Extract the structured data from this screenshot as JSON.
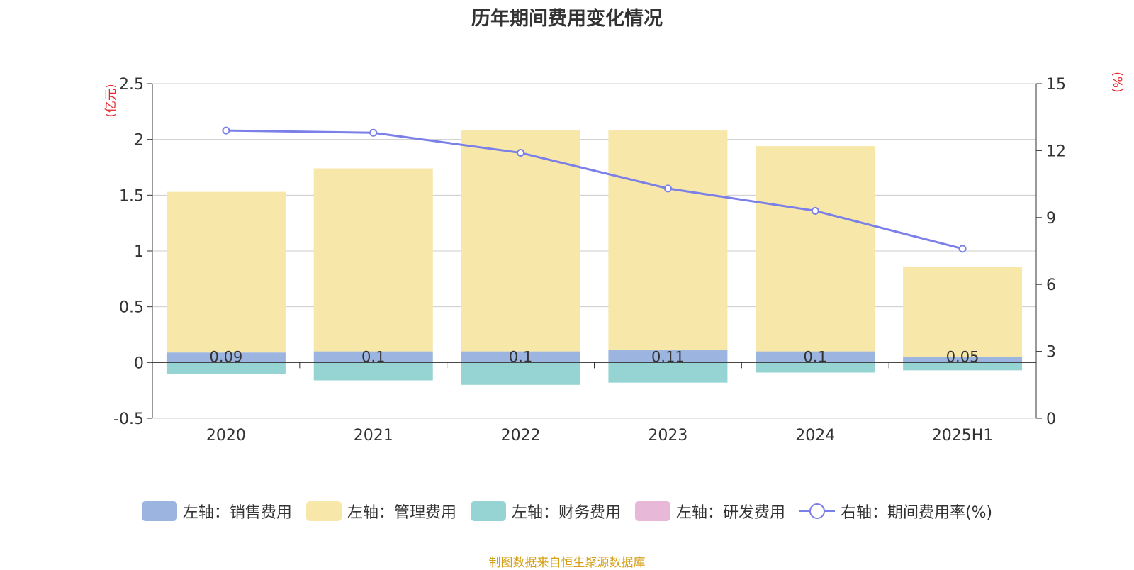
{
  "chart_data": {
    "type": "bar",
    "title": "历年期间费用变化情况",
    "categories": [
      "2020",
      "2021",
      "2022",
      "2023",
      "2024",
      "2025H1"
    ],
    "left_axis": {
      "unit_label": "(亿元)",
      "ticks": [
        "2.5",
        "2",
        "1.5",
        "1",
        "0.5",
        "0",
        "-0.5"
      ],
      "ylim": [
        -0.5,
        2.5
      ]
    },
    "right_axis": {
      "unit_label": "(%)",
      "ticks": [
        "15",
        "12",
        "9",
        "6",
        "3",
        "0"
      ],
      "ylim": [
        0,
        15
      ]
    },
    "series": [
      {
        "name": "左轴：销售费用",
        "axis": "left",
        "kind": "bar",
        "color": "#9bb5e0",
        "values": [
          0.09,
          0.1,
          0.1,
          0.11,
          0.1,
          0.05
        ],
        "labels": [
          "0.09",
          "0.1",
          "0.1",
          "0.11",
          "0.1",
          "0.05"
        ]
      },
      {
        "name": "左轴：管理费用",
        "axis": "left",
        "kind": "bar",
        "color": "#f7e7a8",
        "values": [
          1.44,
          1.64,
          1.98,
          1.97,
          1.84,
          0.81
        ]
      },
      {
        "name": "左轴：财务费用",
        "axis": "left",
        "kind": "bar",
        "color": "#96d4d4",
        "values": [
          -0.1,
          -0.16,
          -0.2,
          -0.18,
          -0.09,
          -0.07
        ]
      },
      {
        "name": "左轴：研发费用",
        "axis": "left",
        "kind": "bar",
        "color": "#e8b8d8",
        "values": [
          0,
          0,
          0,
          0,
          0,
          0
        ]
      },
      {
        "name": "右轴：期间费用率(%)",
        "axis": "right",
        "kind": "line",
        "color": "#7b7fe8",
        "values": [
          12.9,
          12.8,
          11.9,
          10.3,
          9.3,
          7.6
        ]
      }
    ],
    "unit_label_color": "#e8262a",
    "source_text": "制图数据来自恒生聚源数据库",
    "source_color": "#d4a017"
  }
}
